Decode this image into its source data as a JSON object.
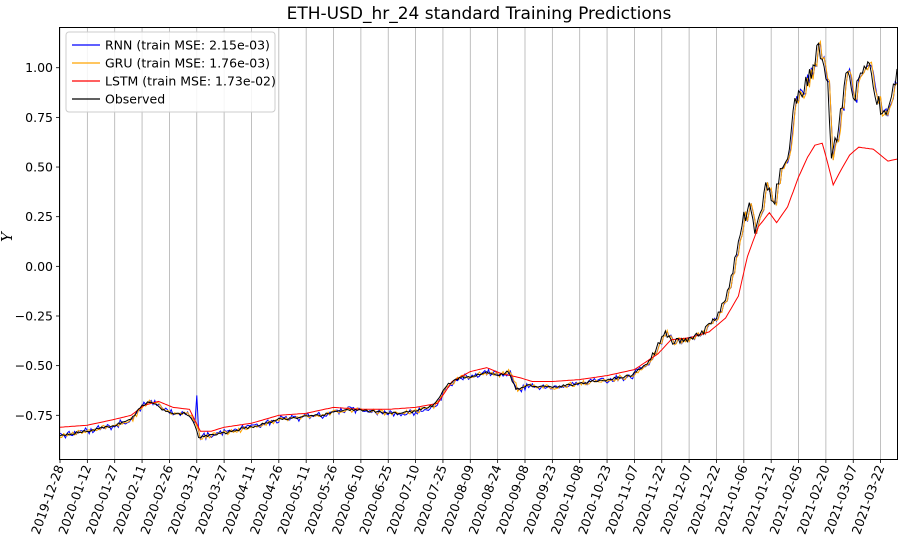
{
  "chart_data": {
    "type": "line",
    "title": "ETH-USD_hr_24 standard Training Predictions",
    "xlabel": "",
    "ylabel": "Ŷ",
    "ylim": [
      -0.97,
      1.2
    ],
    "xlim": [
      "2019-12-28",
      "2021-03-31"
    ],
    "grid": "x-only",
    "legend_position": "top-left",
    "x_ticks": [
      "2019-12-28",
      "2020-01-12",
      "2020-01-27",
      "2020-02-11",
      "2020-02-26",
      "2020-03-12",
      "2020-03-27",
      "2020-04-11",
      "2020-04-26",
      "2020-05-11",
      "2020-05-26",
      "2020-06-10",
      "2020-06-25",
      "2020-07-10",
      "2020-07-25",
      "2020-08-09",
      "2020-08-24",
      "2020-09-08",
      "2020-09-23",
      "2020-10-08",
      "2020-10-23",
      "2020-11-07",
      "2020-11-22",
      "2020-12-07",
      "2020-12-22",
      "2021-01-06",
      "2021-01-21",
      "2021-02-05",
      "2021-02-20",
      "2021-03-07",
      "2021-03-22"
    ],
    "y_ticks": [
      -0.75,
      -0.5,
      -0.25,
      0.0,
      0.25,
      0.5,
      0.75,
      1.0
    ],
    "y_tick_labels": [
      "−0.75",
      "−0.50",
      "−0.25",
      "0.00",
      "0.25",
      "0.50",
      "0.75",
      "1.00"
    ],
    "observed_anchors": [
      [
        "2019-12-28",
        -0.85
      ],
      [
        "2020-01-12",
        -0.83
      ],
      [
        "2020-01-27",
        -0.8
      ],
      [
        "2020-02-05",
        -0.77
      ],
      [
        "2020-02-11",
        -0.7
      ],
      [
        "2020-02-16",
        -0.68
      ],
      [
        "2020-02-22",
        -0.72
      ],
      [
        "2020-02-29",
        -0.74
      ],
      [
        "2020-03-06",
        -0.74
      ],
      [
        "2020-03-10",
        -0.78
      ],
      [
        "2020-03-13",
        -0.86
      ],
      [
        "2020-03-20",
        -0.85
      ],
      [
        "2020-03-27",
        -0.84
      ],
      [
        "2020-04-05",
        -0.82
      ],
      [
        "2020-04-15",
        -0.8
      ],
      [
        "2020-04-26",
        -0.77
      ],
      [
        "2020-05-08",
        -0.76
      ],
      [
        "2020-05-20",
        -0.75
      ],
      [
        "2020-06-01",
        -0.72
      ],
      [
        "2020-06-15",
        -0.73
      ],
      [
        "2020-06-30",
        -0.74
      ],
      [
        "2020-07-10",
        -0.73
      ],
      [
        "2020-07-20",
        -0.7
      ],
      [
        "2020-07-27",
        -0.6
      ],
      [
        "2020-08-03",
        -0.56
      ],
      [
        "2020-08-10",
        -0.56
      ],
      [
        "2020-08-17",
        -0.53
      ],
      [
        "2020-08-24",
        -0.55
      ],
      [
        "2020-08-30",
        -0.53
      ],
      [
        "2020-09-03",
        -0.62
      ],
      [
        "2020-09-10",
        -0.6
      ],
      [
        "2020-09-23",
        -0.61
      ],
      [
        "2020-10-08",
        -0.59
      ],
      [
        "2020-10-23",
        -0.57
      ],
      [
        "2020-11-05",
        -0.55
      ],
      [
        "2020-11-15",
        -0.48
      ],
      [
        "2020-11-24",
        -0.33
      ],
      [
        "2020-11-27",
        -0.38
      ],
      [
        "2020-12-07",
        -0.37
      ],
      [
        "2020-12-15",
        -0.33
      ],
      [
        "2020-12-22",
        -0.25
      ],
      [
        "2020-12-27",
        -0.17
      ],
      [
        "2021-01-02",
        0.05
      ],
      [
        "2021-01-06",
        0.25
      ],
      [
        "2021-01-10",
        0.3
      ],
      [
        "2021-01-12",
        0.13
      ],
      [
        "2021-01-18",
        0.4
      ],
      [
        "2021-01-22",
        0.3
      ],
      [
        "2021-01-26",
        0.45
      ],
      [
        "2021-01-30",
        0.55
      ],
      [
        "2021-02-02",
        0.78
      ],
      [
        "2021-02-05",
        0.85
      ],
      [
        "2021-02-08",
        0.9
      ],
      [
        "2021-02-11",
        0.95
      ],
      [
        "2021-02-14",
        1.05
      ],
      [
        "2021-02-16",
        1.1
      ],
      [
        "2021-02-19",
        1.0
      ],
      [
        "2021-02-21",
        0.9
      ],
      [
        "2021-02-23",
        0.58
      ],
      [
        "2021-02-25",
        0.62
      ],
      [
        "2021-02-28",
        0.75
      ],
      [
        "2021-03-03",
        1.0
      ],
      [
        "2021-03-05",
        0.95
      ],
      [
        "2021-03-07",
        0.85
      ],
      [
        "2021-03-10",
        0.92
      ],
      [
        "2021-03-13",
        1.03
      ],
      [
        "2021-03-16",
        0.98
      ],
      [
        "2021-03-20",
        0.85
      ],
      [
        "2021-03-23",
        0.75
      ],
      [
        "2021-03-25",
        0.8
      ],
      [
        "2021-03-28",
        0.85
      ],
      [
        "2021-03-31",
        0.95
      ]
    ],
    "lstm_anchors": [
      [
        "2019-12-28",
        -0.81
      ],
      [
        "2020-01-12",
        -0.8
      ],
      [
        "2020-01-27",
        -0.77
      ],
      [
        "2020-02-05",
        -0.75
      ],
      [
        "2020-02-12",
        -0.7
      ],
      [
        "2020-02-20",
        -0.68
      ],
      [
        "2020-02-28",
        -0.71
      ],
      [
        "2020-03-08",
        -0.72
      ],
      [
        "2020-03-14",
        -0.83
      ],
      [
        "2020-03-20",
        -0.83
      ],
      [
        "2020-03-27",
        -0.81
      ],
      [
        "2020-04-11",
        -0.79
      ],
      [
        "2020-04-26",
        -0.75
      ],
      [
        "2020-05-11",
        -0.74
      ],
      [
        "2020-05-26",
        -0.71
      ],
      [
        "2020-06-10",
        -0.72
      ],
      [
        "2020-06-25",
        -0.72
      ],
      [
        "2020-07-10",
        -0.71
      ],
      [
        "2020-07-22",
        -0.69
      ],
      [
        "2020-07-30",
        -0.58
      ],
      [
        "2020-08-09",
        -0.53
      ],
      [
        "2020-08-18",
        -0.51
      ],
      [
        "2020-08-26",
        -0.54
      ],
      [
        "2020-09-05",
        -0.56
      ],
      [
        "2020-09-12",
        -0.58
      ],
      [
        "2020-09-23",
        -0.58
      ],
      [
        "2020-10-08",
        -0.57
      ],
      [
        "2020-10-23",
        -0.55
      ],
      [
        "2020-11-07",
        -0.52
      ],
      [
        "2020-11-20",
        -0.44
      ],
      [
        "2020-11-27",
        -0.37
      ],
      [
        "2020-12-07",
        -0.36
      ],
      [
        "2020-12-18",
        -0.33
      ],
      [
        "2020-12-27",
        -0.26
      ],
      [
        "2021-01-03",
        -0.15
      ],
      [
        "2021-01-08",
        0.05
      ],
      [
        "2021-01-14",
        0.2
      ],
      [
        "2021-01-20",
        0.27
      ],
      [
        "2021-01-24",
        0.22
      ],
      [
        "2021-01-30",
        0.3
      ],
      [
        "2021-02-05",
        0.45
      ],
      [
        "2021-02-10",
        0.55
      ],
      [
        "2021-02-14",
        0.61
      ],
      [
        "2021-02-18",
        0.62
      ],
      [
        "2021-02-21",
        0.52
      ],
      [
        "2021-02-24",
        0.41
      ],
      [
        "2021-02-28",
        0.48
      ],
      [
        "2021-03-05",
        0.56
      ],
      [
        "2021-03-10",
        0.6
      ],
      [
        "2021-03-18",
        0.59
      ],
      [
        "2021-03-26",
        0.53
      ],
      [
        "2021-03-31",
        0.54
      ]
    ],
    "series": [
      {
        "name": "RNN (train MSE: 2.15e-03)",
        "color": "#0000ff"
      },
      {
        "name": "GRU (train MSE: 1.76e-03)",
        "color": "#ffa500"
      },
      {
        "name": "LSTM (train MSE: 1.73e-02)",
        "color": "#ff0000"
      },
      {
        "name": "Observed",
        "color": "#000000"
      }
    ]
  }
}
